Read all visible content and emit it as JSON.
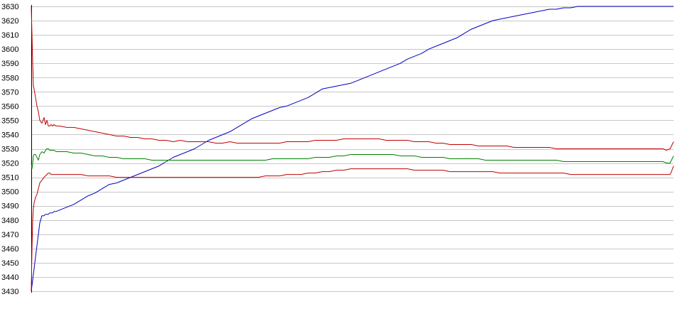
{
  "chart_data": {
    "type": "line",
    "title": "",
    "xlabel": "",
    "ylabel": "",
    "ylim": [
      3430,
      3630
    ],
    "yticks": [
      3630,
      3620,
      3610,
      3600,
      3590,
      3580,
      3570,
      3560,
      3550,
      3540,
      3530,
      3520,
      3510,
      3500,
      3490,
      3480,
      3470,
      3460,
      3450,
      3440,
      3430
    ],
    "grid": true,
    "legend": "none",
    "x": [
      0,
      1,
      2,
      3,
      4,
      6,
      8,
      10,
      12,
      15,
      18,
      20,
      22,
      24,
      26,
      28,
      30,
      32,
      35,
      40,
      50,
      60,
      70,
      80,
      90,
      100,
      110,
      120,
      130,
      140,
      150,
      160,
      170,
      180,
      190,
      200,
      210,
      220,
      230,
      240,
      250,
      260,
      270,
      280,
      290,
      300,
      310,
      320,
      330,
      340,
      350,
      360,
      370,
      380,
      390,
      400,
      410,
      420,
      430,
      440,
      450,
      460,
      470,
      480,
      490,
      500,
      510,
      520,
      530,
      540,
      550,
      560,
      570,
      580,
      590,
      600,
      610,
      620,
      630,
      640,
      650,
      660,
      670,
      680,
      690,
      700,
      710,
      720,
      730,
      740,
      750,
      760,
      770,
      780,
      790,
      800,
      810,
      820,
      830,
      840,
      850,
      860,
      870,
      880,
      890,
      895,
      900,
      902,
      905
    ],
    "series": [
      {
        "color": "#0000c0",
        "values": [
          3430,
          3434,
          3438,
          3442,
          3446,
          3454,
          3462,
          3470,
          3478,
          3483,
          3483,
          3484,
          3484,
          3484,
          3485,
          3485,
          3485,
          3486,
          3486,
          3487,
          3489,
          3491,
          3494,
          3497,
          3499,
          3502,
          3505,
          3506,
          3508,
          3510,
          3512,
          3514,
          3516,
          3518,
          3521,
          3524,
          3526,
          3528,
          3530,
          3533,
          3536,
          3538,
          3540,
          3542,
          3545,
          3548,
          3551,
          3553,
          3555,
          3557,
          3559,
          3560,
          3562,
          3564,
          3566,
          3569,
          3572,
          3573,
          3574,
          3575,
          3576,
          3578,
          3580,
          3582,
          3584,
          3586,
          3588,
          3590,
          3593,
          3595,
          3597,
          3600,
          3602,
          3604,
          3606,
          3608,
          3611,
          3614,
          3616,
          3618,
          3620,
          3621,
          3622,
          3623,
          3624,
          3625,
          3626,
          3627,
          3628,
          3628,
          3629,
          3629,
          3630,
          3630,
          3630,
          3630,
          3630,
          3630,
          3630,
          3630,
          3630,
          3630,
          3630,
          3630,
          3630,
          3630,
          3630,
          3630,
          3630
        ]
      },
      {
        "color": "#c00000",
        "values": [
          3630,
          3610,
          3590,
          3574,
          3572,
          3566,
          3560,
          3556,
          3550,
          3548,
          3552,
          3547,
          3550,
          3546,
          3546,
          3547,
          3546,
          3547,
          3546,
          3546,
          3545,
          3545,
          3544,
          3543,
          3542,
          3541,
          3540,
          3539,
          3539,
          3538,
          3538,
          3537,
          3537,
          3536,
          3536,
          3535,
          3536,
          3535,
          3535,
          3535,
          3535,
          3534,
          3534,
          3535,
          3534,
          3534,
          3534,
          3534,
          3534,
          3534,
          3534,
          3535,
          3535,
          3535,
          3535,
          3536,
          3536,
          3536,
          3536,
          3537,
          3537,
          3537,
          3537,
          3537,
          3537,
          3536,
          3536,
          3536,
          3536,
          3535,
          3535,
          3535,
          3534,
          3534,
          3533,
          3533,
          3533,
          3533,
          3532,
          3532,
          3532,
          3532,
          3532,
          3531,
          3531,
          3531,
          3531,
          3531,
          3531,
          3530,
          3530,
          3530,
          3530,
          3530,
          3530,
          3530,
          3530,
          3530,
          3530,
          3530,
          3530,
          3530,
          3530,
          3530,
          3530,
          3529,
          3530,
          3532,
          3535
        ]
      },
      {
        "color": "#008000",
        "values": [
          3520,
          3516,
          3520,
          3525,
          3526,
          3526,
          3524,
          3522,
          3526,
          3528,
          3527,
          3529,
          3530,
          3530,
          3529,
          3529,
          3529,
          3529,
          3528,
          3528,
          3528,
          3527,
          3527,
          3526,
          3525,
          3525,
          3524,
          3524,
          3523,
          3523,
          3523,
          3523,
          3522,
          3522,
          3522,
          3522,
          3522,
          3522,
          3522,
          3522,
          3522,
          3522,
          3522,
          3522,
          3522,
          3522,
          3522,
          3522,
          3522,
          3523,
          3523,
          3523,
          3523,
          3523,
          3523,
          3524,
          3524,
          3524,
          3525,
          3525,
          3526,
          3526,
          3526,
          3526,
          3526,
          3526,
          3526,
          3525,
          3525,
          3525,
          3524,
          3524,
          3524,
          3524,
          3523,
          3523,
          3523,
          3523,
          3523,
          3522,
          3522,
          3522,
          3522,
          3522,
          3522,
          3522,
          3522,
          3522,
          3522,
          3522,
          3521,
          3521,
          3521,
          3521,
          3521,
          3521,
          3521,
          3521,
          3521,
          3521,
          3521,
          3521,
          3521,
          3521,
          3521,
          3520,
          3520,
          3522,
          3525
        ]
      },
      {
        "color": "#c00000",
        "values": [
          3430,
          3460,
          3480,
          3488,
          3492,
          3496,
          3498,
          3502,
          3506,
          3508,
          3510,
          3511,
          3512,
          3513,
          3513,
          3512,
          3512,
          3512,
          3512,
          3512,
          3512,
          3512,
          3512,
          3511,
          3511,
          3511,
          3511,
          3510,
          3510,
          3510,
          3510,
          3510,
          3510,
          3510,
          3510,
          3510,
          3510,
          3510,
          3510,
          3510,
          3510,
          3510,
          3510,
          3510,
          3510,
          3510,
          3510,
          3510,
          3511,
          3511,
          3511,
          3512,
          3512,
          3512,
          3513,
          3513,
          3514,
          3514,
          3515,
          3515,
          3516,
          3516,
          3516,
          3516,
          3516,
          3516,
          3516,
          3516,
          3516,
          3515,
          3515,
          3515,
          3515,
          3515,
          3514,
          3514,
          3514,
          3514,
          3514,
          3514,
          3514,
          3513,
          3513,
          3513,
          3513,
          3513,
          3513,
          3513,
          3513,
          3513,
          3513,
          3512,
          3512,
          3512,
          3512,
          3512,
          3512,
          3512,
          3512,
          3512,
          3512,
          3512,
          3512,
          3512,
          3512,
          3512,
          3512,
          3514,
          3518
        ]
      }
    ]
  }
}
